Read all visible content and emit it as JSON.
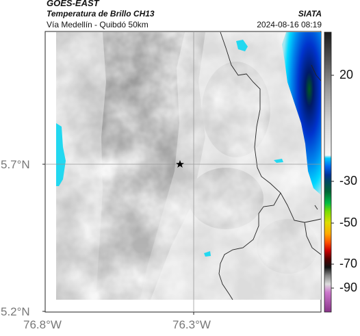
{
  "header": {
    "satellite": "GOES-EAST",
    "product": "Temperatura de Brillo CH13",
    "region": "Vía Medellín - Quibdó 50km",
    "organization": "SIATA",
    "timestamp": "2024-08-16 08:19"
  },
  "axes": {
    "y_ticks": [
      "5.7°N",
      "5.2°N"
    ],
    "x_ticks": [
      "76.8°W",
      "76.3°W"
    ]
  },
  "colorbar": {
    "ticks": [
      "20",
      "-30",
      "-50",
      "-70",
      "-90"
    ]
  },
  "markers": [
    {
      "type": "star",
      "lon": -76.35,
      "lat": 5.7
    }
  ],
  "colors": {
    "cloud_gray_dark": "#8e8e8e",
    "cloud_gray_light": "#ededed",
    "cyan": "#00e5ff",
    "blue": "#0033cc",
    "navy": "#001a66",
    "green": "#00aa33"
  }
}
